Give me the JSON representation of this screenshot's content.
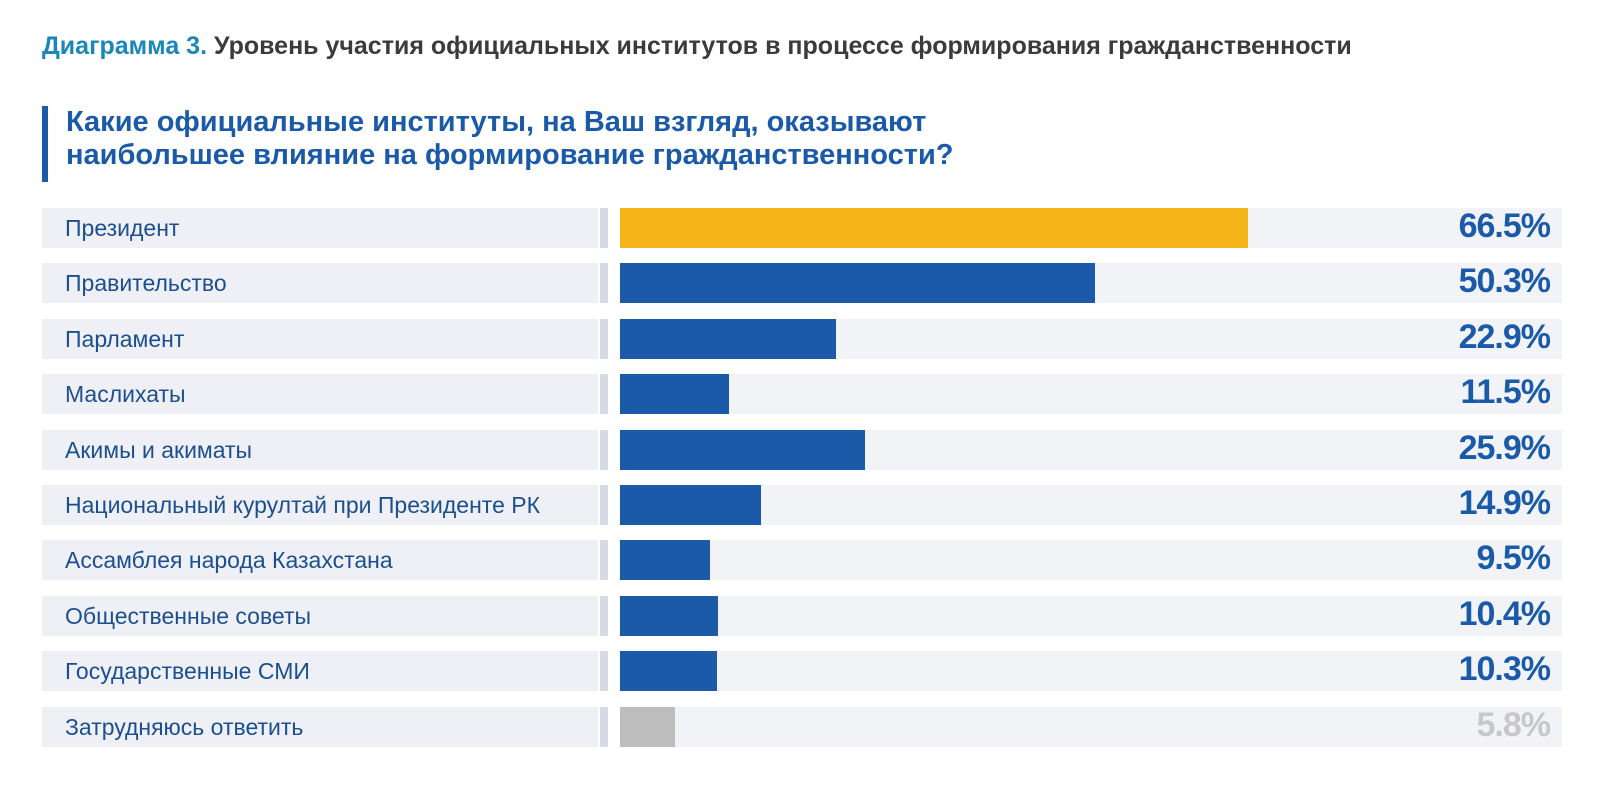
{
  "header": {
    "prefix": "Диаграмма 3.",
    "title": "Уровень участия официальных институтов в процессе формирования гражданственности"
  },
  "question": {
    "line1": "Какие официальные институты, на Ваш взгляд, оказывают",
    "line2": "наибольшее влияние на формирование гражданственности?"
  },
  "colors": {
    "highlight": "#f5b417",
    "primary": "#1a5aa8",
    "muted": "#bdbdbd",
    "label_text": "#1c4f8f"
  },
  "chart_data": {
    "type": "bar",
    "orientation": "horizontal",
    "categories": [
      "Президент",
      "Правительство",
      "Парламент",
      "Маслихаты",
      "Акимы и акиматы",
      "Национальный курултай при Президенте РК",
      "Ассамблея народа Казахстана",
      "Общественные советы",
      "Государственные СМИ",
      "Затрудняюсь ответить"
    ],
    "values": [
      66.5,
      50.3,
      22.9,
      11.5,
      25.9,
      14.9,
      9.5,
      10.4,
      10.3,
      5.8
    ],
    "value_labels": [
      "66.5%",
      "50.3%",
      "22.9%",
      "11.5%",
      "25.9%",
      "14.9%",
      "9.5%",
      "10.4%",
      "10.3%",
      "5.8%"
    ],
    "bar_colors": [
      "#f5b417",
      "#1a5aa8",
      "#1a5aa8",
      "#1a5aa8",
      "#1a5aa8",
      "#1a5aa8",
      "#1a5aa8",
      "#1a5aa8",
      "#1a5aa8",
      "#bdbdbd"
    ],
    "value_colors": [
      "#1a5aa8",
      "#1a5aa8",
      "#1a5aa8",
      "#1a5aa8",
      "#1a5aa8",
      "#1a5aa8",
      "#1a5aa8",
      "#1a5aa8",
      "#1a5aa8",
      "#c8c8c8"
    ],
    "xlim": [
      0,
      100
    ],
    "grid": false,
    "legend": "none"
  }
}
